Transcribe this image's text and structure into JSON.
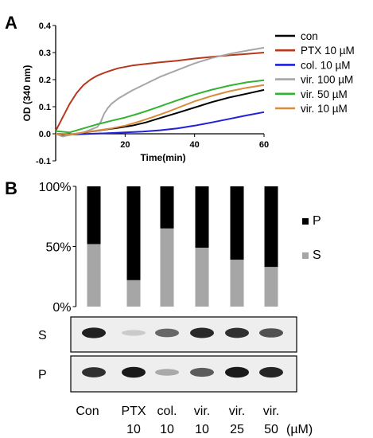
{
  "panels": {
    "a": "A",
    "b": "B"
  },
  "chart_data": [
    {
      "type": "line",
      "xlabel": "Time(min)",
      "ylabel": "OD (340 nm)",
      "xlim": [
        0,
        60
      ],
      "ylim": [
        -0.1,
        0.4
      ],
      "x_ticks": [
        "20",
        "40",
        "60"
      ],
      "y_ticks": [
        "-0.1",
        "0.0",
        "0.1",
        "0.2",
        "0.3",
        "0.4"
      ],
      "grid": false,
      "legend_position": "right",
      "series": [
        {
          "name": "con",
          "color": "#000000",
          "x": [
            0,
            3,
            6,
            10,
            14,
            18,
            22,
            26,
            30,
            35,
            40,
            45,
            50,
            55,
            60
          ],
          "y": [
            0.0,
            -0.005,
            0.0,
            0.008,
            0.015,
            0.022,
            0.03,
            0.042,
            0.058,
            0.077,
            0.097,
            0.117,
            0.134,
            0.148,
            0.162
          ]
        },
        {
          "name": "PTX 10 µM",
          "color": "#b5381f",
          "x": [
            0,
            2,
            4,
            6,
            8,
            10,
            12,
            15,
            18,
            22,
            26,
            30,
            35,
            40,
            45,
            50,
            55,
            60
          ],
          "y": [
            0.01,
            0.06,
            0.11,
            0.15,
            0.18,
            0.2,
            0.215,
            0.23,
            0.242,
            0.252,
            0.258,
            0.264,
            0.27,
            0.278,
            0.284,
            0.29,
            0.295,
            0.3
          ]
        },
        {
          "name": "col. 10 µM",
          "color": "#1f1fdc",
          "x": [
            0,
            5,
            10,
            15,
            20,
            25,
            30,
            35,
            40,
            45,
            50,
            55,
            60
          ],
          "y": [
            0.0,
            -0.003,
            0.0,
            0.002,
            0.005,
            0.008,
            0.013,
            0.02,
            0.03,
            0.042,
            0.055,
            0.068,
            0.08
          ]
        },
        {
          "name": "vir. 100 µM",
          "color": "#a6a6a6",
          "x": [
            0,
            2,
            4,
            6,
            8,
            10,
            12,
            13,
            14,
            15,
            16,
            18,
            22,
            26,
            30,
            35,
            40,
            45,
            50,
            55,
            60
          ],
          "y": [
            0.0,
            -0.01,
            -0.005,
            0.0,
            0.005,
            0.015,
            0.025,
            0.045,
            0.075,
            0.095,
            0.11,
            0.13,
            0.16,
            0.185,
            0.21,
            0.235,
            0.26,
            0.28,
            0.295,
            0.307,
            0.318
          ]
        },
        {
          "name": "vir. 50 µM",
          "color": "#33b233",
          "x": [
            0,
            4,
            8,
            12,
            16,
            20,
            24,
            28,
            32,
            36,
            40,
            45,
            50,
            55,
            60
          ],
          "y": [
            0.01,
            0.005,
            0.02,
            0.035,
            0.048,
            0.06,
            0.075,
            0.092,
            0.11,
            0.128,
            0.145,
            0.163,
            0.178,
            0.19,
            0.198
          ]
        },
        {
          "name": "vir. 10 µM",
          "color": "#d98a3a",
          "x": [
            0,
            4,
            8,
            12,
            16,
            20,
            24,
            28,
            32,
            36,
            40,
            45,
            50,
            55,
            60
          ],
          "y": [
            0.0,
            -0.003,
            0.005,
            0.012,
            0.02,
            0.03,
            0.045,
            0.062,
            0.08,
            0.1,
            0.12,
            0.14,
            0.157,
            0.17,
            0.18
          ]
        }
      ]
    },
    {
      "type": "bar",
      "stacked": true,
      "categories": [
        "Con",
        "PTX 10",
        "col. 10",
        "vir. 10",
        "vir. 25",
        "vir. 50"
      ],
      "category_lines": [
        [
          "Con"
        ],
        [
          "PTX",
          "10"
        ],
        [
          "col.",
          "10"
        ],
        [
          "vir.",
          "10"
        ],
        [
          "vir.",
          "25"
        ],
        [
          "vir.",
          "50"
        ]
      ],
      "unit": "(µM)",
      "ylim": [
        0,
        100
      ],
      "y_ticks": [
        "0%",
        "50%",
        "100%"
      ],
      "legend_position": "right",
      "series": [
        {
          "name": "S",
          "color": "#a6a6a6",
          "values": [
            52,
            22,
            65,
            49,
            39,
            33
          ]
        },
        {
          "name": "P",
          "color": "#000000",
          "values": [
            48,
            78,
            35,
            51,
            61,
            67
          ]
        }
      ]
    }
  ],
  "blots": [
    {
      "label": "S",
      "band_intensity": [
        0.92,
        0.15,
        0.6,
        0.88,
        0.85,
        0.7
      ]
    },
    {
      "label": "P",
      "band_intensity": [
        0.85,
        0.95,
        0.3,
        0.65,
        0.95,
        0.9
      ]
    }
  ]
}
